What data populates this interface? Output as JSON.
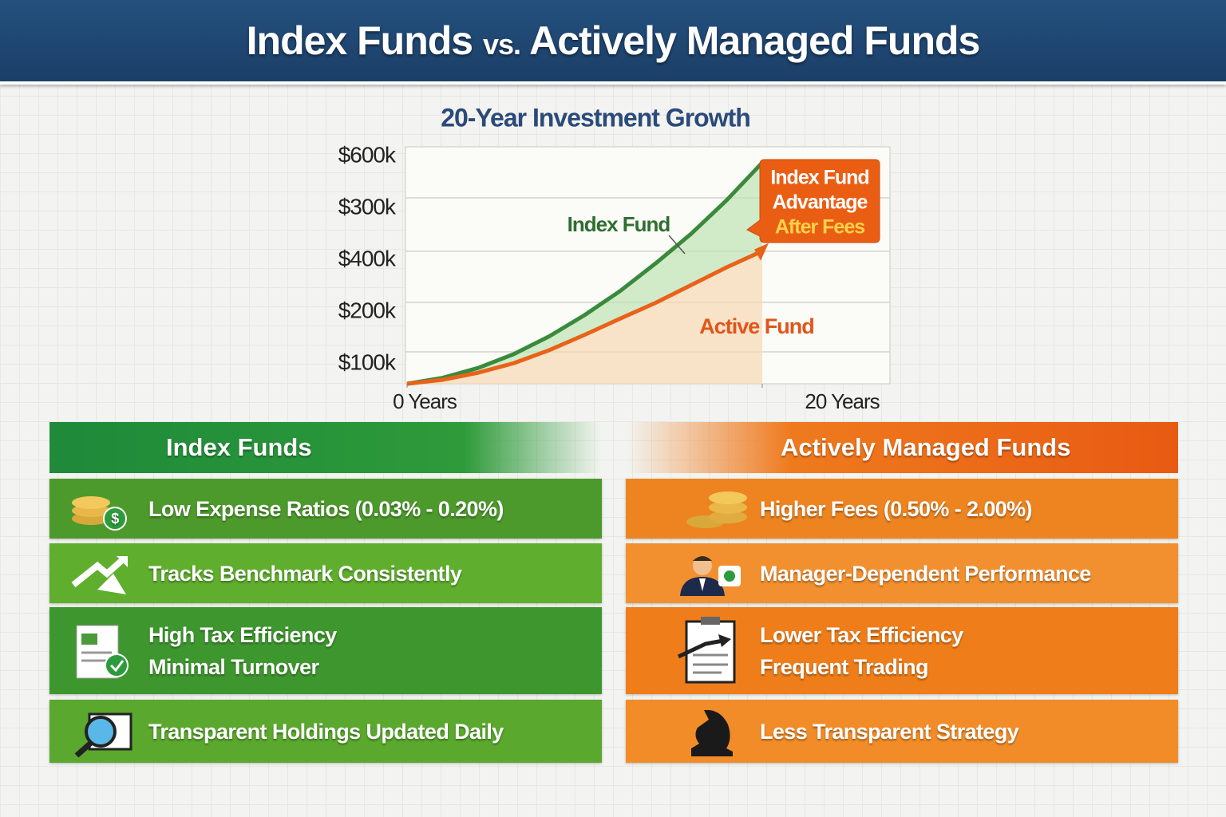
{
  "header": {
    "title_start": "Index Funds",
    "title_mid": "vs.",
    "title_end": "Actively Managed Funds"
  },
  "chart_data": {
    "type": "line",
    "title": "20-Year Investment Growth",
    "y_axis_labels": [
      "$600k",
      "$300k",
      "$400k",
      "$200k",
      "$100k"
    ],
    "x": [
      0,
      2,
      4,
      6,
      8,
      10,
      12,
      14,
      16,
      18,
      20
    ],
    "xlim": [
      0,
      20
    ],
    "xticks": [
      {
        "value": 0,
        "label": "0 Years"
      },
      {
        "value": 20,
        "label": "20 Years"
      }
    ],
    "ylim": [
      0,
      600000
    ],
    "series": [
      {
        "name": "Index Fund",
        "color": "#3a8a3c",
        "values": [
          0,
          15000,
          40000,
          75000,
          120000,
          174000,
          235000,
          305000,
          380000,
          465000,
          560000
        ]
      },
      {
        "name": "Active Fund",
        "color": "#e8621a",
        "values": [
          0,
          10000,
          28000,
          52000,
          85000,
          124000,
          165000,
          205000,
          250000,
          295000,
          336000
        ]
      }
    ],
    "annotation": [
      "Index Fund",
      "Advantage",
      "After Fees"
    ]
  },
  "panels": [
    {
      "heading": "Index Funds",
      "items": [
        [
          "Low Expense Ratios (0.03% - 0.20%)"
        ],
        [
          "Tracks Benchmark Consistently"
        ],
        [
          "High Tax Efficiency",
          "Minimal Turnover"
        ],
        [
          "Transparent Holdings Updated Daily"
        ]
      ]
    },
    {
      "heading": "Actively Managed Funds",
      "items": [
        [
          "Higher Fees (0.50% - 2.00%)"
        ],
        [
          "Manager-Dependent Performance"
        ],
        [
          "Lower Tax Efficiency",
          "Frequent Trading"
        ],
        [
          "Less Transparent Strategy"
        ]
      ]
    }
  ]
}
